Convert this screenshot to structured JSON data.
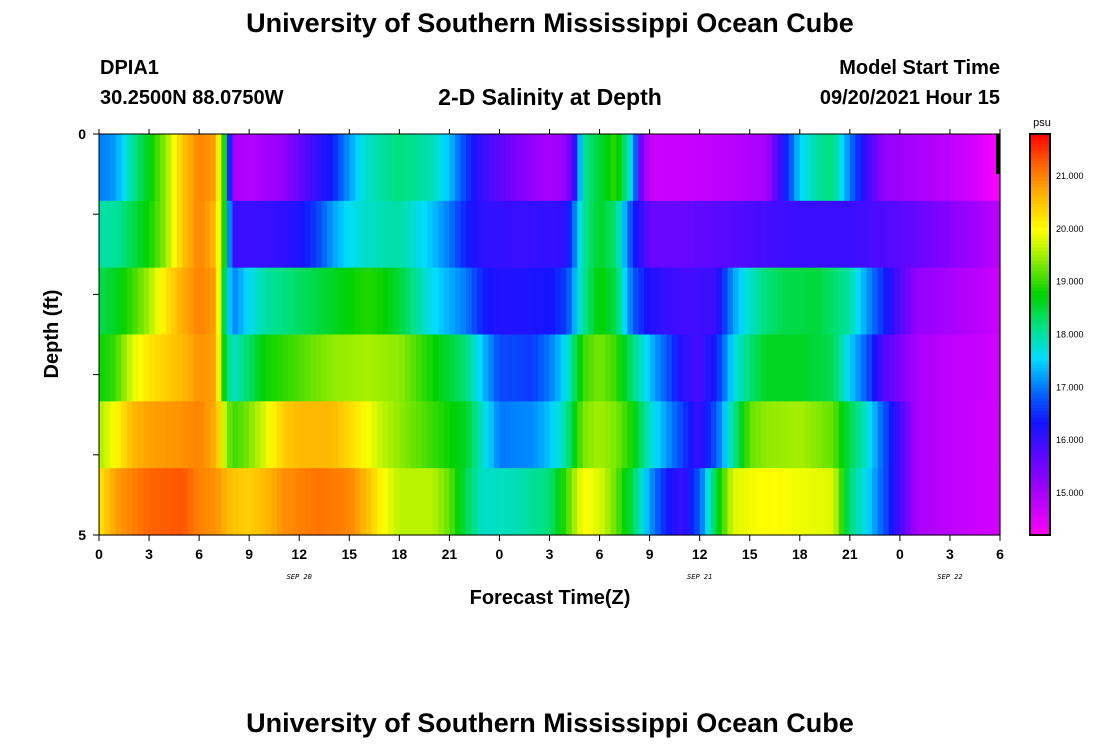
{
  "title_top": "University of Southern Mississippi Ocean Cube",
  "title_bottom": "University of Southern Mississippi Ocean Cube",
  "station": {
    "id": "DPIA1",
    "coords": "30.2500N  88.0750W"
  },
  "model": {
    "label": "Model Start Time",
    "start": "09/20/2021 Hour 15"
  },
  "chart_data": {
    "type": "heatmap",
    "title": "2-D Salinity at Depth",
    "xlabel": "Forecast Time(Z)",
    "ylabel": "Depth (ft)",
    "x_range_hours": [
      0,
      54
    ],
    "y_range_ft": [
      0,
      5
    ],
    "x_tick_labels": [
      "0",
      "3",
      "6",
      "9",
      "12",
      "15",
      "18",
      "21",
      "0",
      "3",
      "6",
      "9",
      "12",
      "15",
      "18",
      "21",
      "0",
      "3",
      "6"
    ],
    "y_tick_labels": [
      "0",
      "5"
    ],
    "date_labels": [
      {
        "text": "SEP 20",
        "hour": 12
      },
      {
        "text": "SEP 21",
        "hour": 36
      },
      {
        "text": "SEP 22",
        "hour": 51
      }
    ],
    "colorbar": {
      "unit": "psu",
      "min": 14.2,
      "max": 21.8,
      "tick_values": [
        15.0,
        16.0,
        17.0,
        18.0,
        19.0,
        20.0,
        21.0
      ],
      "tick_labels": [
        "15.000",
        "16.000",
        "17.000",
        "18.000",
        "19.000",
        "20.000",
        "21.000"
      ]
    },
    "layers": [
      {
        "depth": "0-1 ft",
        "keyframes": [
          [
            0,
            17.0
          ],
          [
            1,
            17.2
          ],
          [
            2,
            18.0
          ],
          [
            3,
            18.7
          ],
          [
            4,
            19.4
          ],
          [
            5,
            20.5
          ],
          [
            6,
            21.0
          ],
          [
            7,
            20.8
          ],
          [
            7.6,
            18.5
          ],
          [
            8,
            15.0
          ],
          [
            9,
            14.9
          ],
          [
            11,
            15.2
          ],
          [
            12,
            15.6
          ],
          [
            13,
            16.0
          ],
          [
            14,
            16.4
          ],
          [
            15,
            17.2
          ],
          [
            16,
            17.8
          ],
          [
            18,
            18.2
          ],
          [
            20,
            17.9
          ],
          [
            21,
            17.4
          ],
          [
            22,
            16.6
          ],
          [
            23,
            16.0
          ],
          [
            25,
            15.4
          ],
          [
            27,
            15.0
          ],
          [
            28,
            15.2
          ],
          [
            28.5,
            16.0
          ],
          [
            29,
            18.0
          ],
          [
            30,
            18.5
          ],
          [
            31,
            19.0
          ],
          [
            32,
            17.5
          ],
          [
            32.5,
            15.5
          ],
          [
            33,
            14.7
          ],
          [
            35,
            14.7
          ],
          [
            37,
            14.8
          ],
          [
            40,
            15.0
          ],
          [
            41,
            16.2
          ],
          [
            42,
            17.5
          ],
          [
            43,
            18.0
          ],
          [
            44,
            18.2
          ],
          [
            45,
            17.0
          ],
          [
            46,
            16.0
          ],
          [
            47,
            15.2
          ],
          [
            49,
            15.0
          ],
          [
            51,
            14.8
          ],
          [
            53,
            14.5
          ],
          [
            54,
            14.2
          ]
        ]
      },
      {
        "depth": "1-2 ft",
        "keyframes": [
          [
            0,
            18.0
          ],
          [
            1,
            18.0
          ],
          [
            2,
            18.4
          ],
          [
            3,
            18.8
          ],
          [
            4,
            19.4
          ],
          [
            5,
            20.5
          ],
          [
            6,
            21.0
          ],
          [
            7,
            20.6
          ],
          [
            7.6,
            18.5
          ],
          [
            8,
            16.0
          ],
          [
            10,
            16.0
          ],
          [
            12,
            16.2
          ],
          [
            13,
            16.6
          ],
          [
            14,
            17.2
          ],
          [
            15,
            17.6
          ],
          [
            16,
            17.8
          ],
          [
            18,
            18.0
          ],
          [
            20,
            17.4
          ],
          [
            21,
            17.0
          ],
          [
            22,
            16.4
          ],
          [
            23,
            16.1
          ],
          [
            25,
            16.0
          ],
          [
            28,
            16.1
          ],
          [
            28.5,
            17.0
          ],
          [
            29,
            18.0
          ],
          [
            30,
            18.6
          ],
          [
            31,
            18.2
          ],
          [
            32,
            16.5
          ],
          [
            33,
            15.6
          ],
          [
            35,
            15.6
          ],
          [
            37,
            15.7
          ],
          [
            40,
            15.9
          ],
          [
            42,
            16.0
          ],
          [
            45,
            16.0
          ],
          [
            47,
            15.8
          ],
          [
            49,
            15.6
          ],
          [
            51,
            15.3
          ],
          [
            53,
            15.0
          ],
          [
            54,
            14.8
          ]
        ]
      },
      {
        "depth": "2-3 ft",
        "keyframes": [
          [
            0,
            18.4
          ],
          [
            1,
            18.6
          ],
          [
            2,
            19.0
          ],
          [
            3,
            19.5
          ],
          [
            4,
            20.2
          ],
          [
            5,
            20.7
          ],
          [
            6,
            21.0
          ],
          [
            7,
            20.8
          ],
          [
            7.6,
            18.0
          ],
          [
            8,
            17.0
          ],
          [
            9,
            17.6
          ],
          [
            10,
            18.0
          ],
          [
            12,
            18.3
          ],
          [
            14,
            18.6
          ],
          [
            16,
            18.9
          ],
          [
            17,
            18.8
          ],
          [
            18,
            18.5
          ],
          [
            20,
            17.6
          ],
          [
            22,
            17.0
          ],
          [
            23,
            16.4
          ],
          [
            24,
            16.2
          ],
          [
            27,
            16.3
          ],
          [
            28,
            16.6
          ],
          [
            29,
            18.0
          ],
          [
            30,
            18.8
          ],
          [
            31,
            18.4
          ],
          [
            32,
            16.8
          ],
          [
            33,
            16.2
          ],
          [
            35,
            15.9
          ],
          [
            37,
            16.0
          ],
          [
            38,
            17.2
          ],
          [
            39,
            17.8
          ],
          [
            40,
            18.2
          ],
          [
            41,
            18.4
          ],
          [
            43,
            18.5
          ],
          [
            45,
            18.0
          ],
          [
            46,
            17.2
          ],
          [
            47,
            16.5
          ],
          [
            48,
            15.8
          ],
          [
            49,
            15.2
          ],
          [
            51,
            15.0
          ],
          [
            53,
            14.8
          ],
          [
            54,
            14.7
          ]
        ]
      },
      {
        "depth": "3-4 ft",
        "keyframes": [
          [
            0,
            18.8
          ],
          [
            1,
            19.0
          ],
          [
            2,
            19.8
          ],
          [
            3,
            20.2
          ],
          [
            4,
            20.4
          ],
          [
            5,
            20.6
          ],
          [
            6,
            20.9
          ],
          [
            7,
            20.8
          ],
          [
            7.6,
            18.4
          ],
          [
            8,
            17.8
          ],
          [
            9,
            18.3
          ],
          [
            10,
            18.8
          ],
          [
            12,
            19.1
          ],
          [
            14,
            19.4
          ],
          [
            16,
            19.5
          ],
          [
            18,
            19.4
          ],
          [
            20,
            18.8
          ],
          [
            22,
            18.2
          ],
          [
            23,
            17.4
          ],
          [
            24,
            16.7
          ],
          [
            26,
            16.6
          ],
          [
            27,
            17.0
          ],
          [
            28,
            17.6
          ],
          [
            29,
            19.0
          ],
          [
            30,
            19.3
          ],
          [
            31,
            19.0
          ],
          [
            32,
            18.2
          ],
          [
            33,
            17.4
          ],
          [
            34,
            16.8
          ],
          [
            35,
            16.1
          ],
          [
            36,
            15.9
          ],
          [
            37,
            16.4
          ],
          [
            38,
            17.6
          ],
          [
            39,
            18.2
          ],
          [
            40,
            18.6
          ],
          [
            42,
            18.6
          ],
          [
            44,
            18.4
          ],
          [
            45,
            17.5
          ],
          [
            46,
            16.8
          ],
          [
            47,
            15.8
          ],
          [
            49,
            15.0
          ],
          [
            51,
            14.8
          ],
          [
            53,
            14.7
          ],
          [
            54,
            14.6
          ]
        ]
      },
      {
        "depth": "4-5 ft",
        "keyframes": [
          [
            0,
            19.5
          ],
          [
            1,
            20.0
          ],
          [
            2,
            20.6
          ],
          [
            3,
            20.8
          ],
          [
            5,
            20.9
          ],
          [
            6,
            21.0
          ],
          [
            7,
            20.7
          ],
          [
            7.6,
            19.5
          ],
          [
            8,
            19.0
          ],
          [
            9,
            19.3
          ],
          [
            10,
            19.8
          ],
          [
            11,
            20.4
          ],
          [
            12,
            20.6
          ],
          [
            14,
            20.6
          ],
          [
            16,
            20.0
          ],
          [
            17,
            19.6
          ],
          [
            18,
            19.4
          ],
          [
            20,
            19.0
          ],
          [
            22,
            18.6
          ],
          [
            23,
            17.8
          ],
          [
            24,
            17.0
          ],
          [
            26,
            17.1
          ],
          [
            27,
            17.4
          ],
          [
            28,
            18.0
          ],
          [
            29,
            19.3
          ],
          [
            30,
            19.5
          ],
          [
            31,
            19.3
          ],
          [
            32,
            18.8
          ],
          [
            33,
            17.8
          ],
          [
            34,
            17.2
          ],
          [
            35,
            16.6
          ],
          [
            36,
            16.0
          ],
          [
            37,
            16.8
          ],
          [
            38,
            18.0
          ],
          [
            39,
            19.2
          ],
          [
            40,
            19.4
          ],
          [
            42,
            19.5
          ],
          [
            44,
            19.2
          ],
          [
            45,
            18.4
          ],
          [
            46,
            17.8
          ],
          [
            47,
            16.8
          ],
          [
            49,
            15.0
          ],
          [
            51,
            14.8
          ],
          [
            54,
            14.6
          ]
        ]
      },
      {
        "depth": "5 ft",
        "keyframes": [
          [
            0,
            20.2
          ],
          [
            1,
            20.8
          ],
          [
            2,
            21.0
          ],
          [
            3,
            21.2
          ],
          [
            5,
            21.3
          ],
          [
            6,
            21.0
          ],
          [
            7,
            20.9
          ],
          [
            8,
            20.5
          ],
          [
            9,
            20.4
          ],
          [
            10,
            20.6
          ],
          [
            11,
            20.9
          ],
          [
            13,
            21.1
          ],
          [
            15,
            21.0
          ],
          [
            16,
            20.6
          ],
          [
            17,
            20.0
          ],
          [
            18,
            19.6
          ],
          [
            20,
            19.6
          ],
          [
            21,
            19.2
          ],
          [
            22,
            18.4
          ],
          [
            23,
            17.8
          ],
          [
            25,
            17.9
          ],
          [
            27,
            18.2
          ],
          [
            28,
            19.0
          ],
          [
            29,
            20.0
          ],
          [
            30,
            19.8
          ],
          [
            31,
            19.2
          ],
          [
            32,
            18.4
          ],
          [
            33,
            17.2
          ],
          [
            34,
            16.4
          ],
          [
            35,
            16.0
          ],
          [
            36,
            16.8
          ],
          [
            37,
            18.5
          ],
          [
            38,
            19.8
          ],
          [
            40,
            20.0
          ],
          [
            44,
            19.8
          ],
          [
            45,
            18.2
          ],
          [
            46,
            17.6
          ],
          [
            47,
            16.8
          ],
          [
            49,
            15.0
          ],
          [
            51,
            14.8
          ],
          [
            54,
            14.6
          ]
        ]
      }
    ]
  }
}
